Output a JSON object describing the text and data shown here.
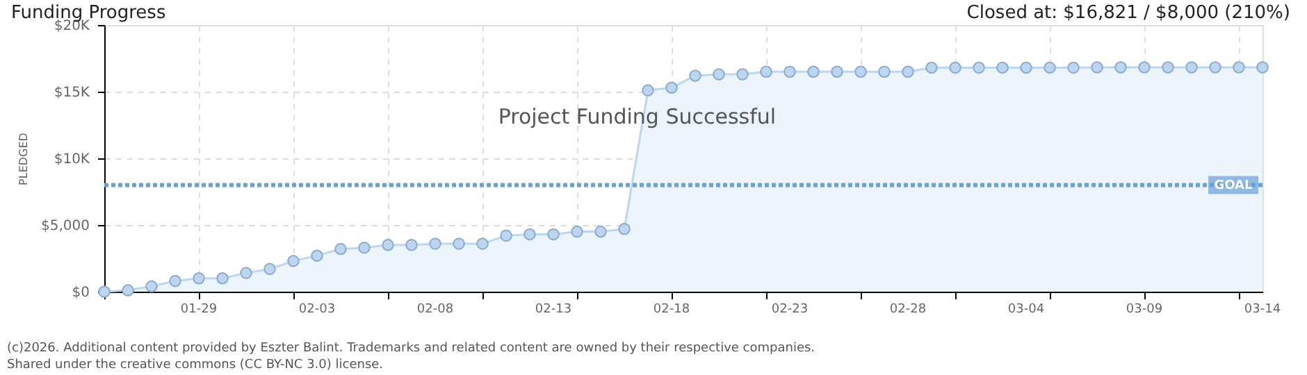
{
  "chart_data": {
    "type": "area",
    "title": "Funding Progress",
    "ylabel": "PLEDGED",
    "categories": [
      null,
      null,
      null,
      null,
      "01-29",
      null,
      null,
      null,
      null,
      "02-03",
      null,
      null,
      null,
      null,
      "02-08",
      null,
      null,
      null,
      null,
      "02-13",
      null,
      null,
      null,
      null,
      "02-18",
      null,
      null,
      null,
      null,
      "02-23",
      null,
      null,
      null,
      null,
      "02-28",
      null,
      null,
      null,
      null,
      "03-04",
      null,
      null,
      null,
      null,
      "03-09",
      null,
      null,
      null,
      null,
      "03-14"
    ],
    "series": [
      {
        "color": "#bcd6f2",
        "values": [
          0,
          100,
          400,
          800,
          1000,
          1000,
          1400,
          1700,
          2300,
          2700,
          3200,
          3300,
          3500,
          3500,
          3600,
          3600,
          3600,
          4200,
          4300,
          4300,
          4500,
          4500,
          4700,
          15100,
          15300,
          16200,
          16300,
          16300,
          16500,
          16500,
          16500,
          16500,
          16500,
          16500,
          16500,
          16800,
          16800,
          16800,
          16800,
          16800,
          16800,
          16800,
          16821,
          16821,
          16821,
          16821,
          16821,
          16821,
          16821,
          16821
        ]
      }
    ],
    "ylim": [
      0,
      20000
    ],
    "yticks": [
      {
        "value": 0,
        "label": "$0"
      },
      {
        "value": 5000,
        "label": "$5,000"
      },
      {
        "value": 10000,
        "label": "$10K"
      },
      {
        "value": 15000,
        "label": "$15K"
      },
      {
        "value": 20000,
        "label": "$20K"
      }
    ],
    "ref_lines": [
      {
        "axis": "y",
        "value": 8000,
        "label": "GOAL",
        "color": "#6a9fd8",
        "line_style": "dotted"
      }
    ],
    "grid": true,
    "marker": "circle",
    "annotations": [
      "Closed at: $16,821 / $8,000 (210%)",
      "Project Funding Successful",
      "(c)2026. Additional content provided by Eszter Balint. Trademarks and related content are owned by their respective companies.",
      "Shared under the creative commons (CC BY-NC 3.0) license."
    ]
  }
}
